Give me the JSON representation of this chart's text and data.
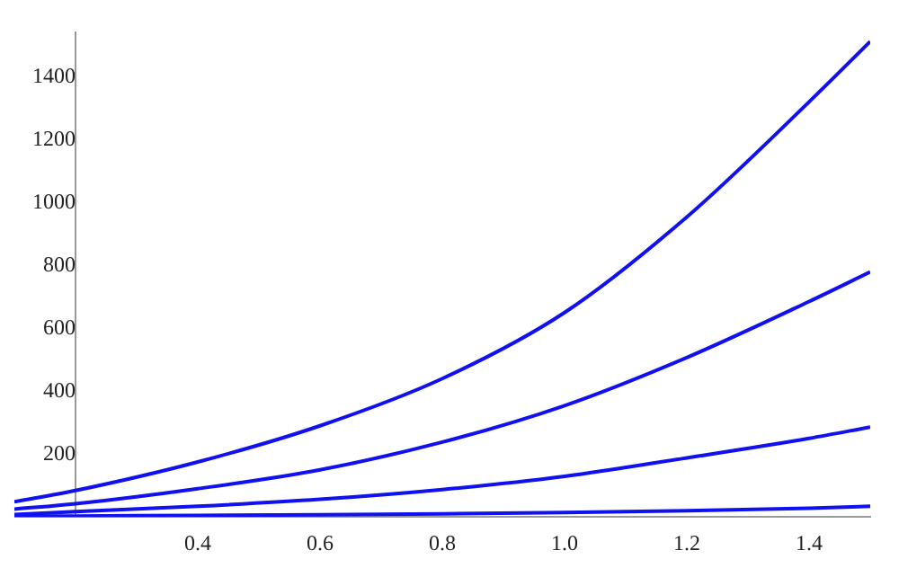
{
  "chart_data": {
    "type": "line",
    "x": [
      0.1,
      0.2,
      0.4,
      0.6,
      0.8,
      1.0,
      1.2,
      1.4,
      1.5
    ],
    "series": [
      {
        "color": "#1010f0",
        "values": [
          48,
          84,
          175,
          290,
          440,
          650,
          954,
          1320,
          1512
        ]
      },
      {
        "color": "#1010f0",
        "values": [
          25,
          42,
          90,
          150,
          238,
          354,
          507,
          685,
          779
        ]
      },
      {
        "color": "#1010f0",
        "values": [
          8,
          17,
          34,
          56,
          87,
          129,
          188,
          250,
          286
        ]
      },
      {
        "color": "#1010f0",
        "values": [
          2,
          3,
          5,
          7,
          10,
          14,
          20,
          28,
          34
        ]
      }
    ],
    "xlim": [
      0.1,
      1.5
    ],
    "xticks": [
      0.4,
      0.6,
      0.8,
      {
        "value": 1,
        "label": "1.0"
      },
      1.2,
      1.4
    ],
    "ylim": [
      0,
      1540
    ],
    "yticks": [
      200,
      400,
      600,
      800,
      1000,
      1200,
      1400
    ],
    "grid": false,
    "legend": false,
    "marker": "none",
    "line_style": "solid"
  }
}
